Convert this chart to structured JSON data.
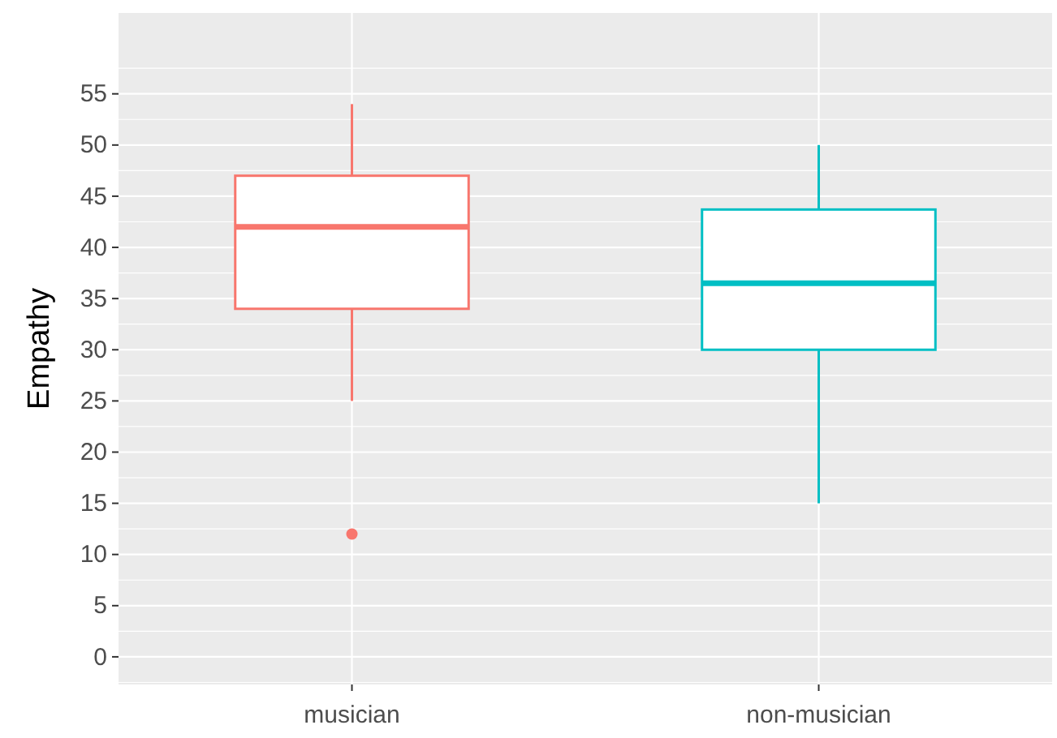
{
  "chart_data": {
    "type": "box",
    "ylabel": "Empathy",
    "categories": [
      "musician",
      "non-musician"
    ],
    "boxes": [
      {
        "low": 25,
        "q1": 34,
        "median": 42,
        "q3": 47,
        "high": 54,
        "outliers": [
          12
        ]
      },
      {
        "low": 15,
        "q1": 30,
        "median": 36.5,
        "q3": 43.7,
        "high": 50
      }
    ],
    "colors": [
      "#f8766d",
      "#00bfc4"
    ],
    "ylim": [
      -2.7,
      62.9
    ],
    "yticks": [
      0,
      5,
      10,
      15,
      20,
      25,
      30,
      35,
      40,
      45,
      50,
      55
    ],
    "grid": true
  }
}
